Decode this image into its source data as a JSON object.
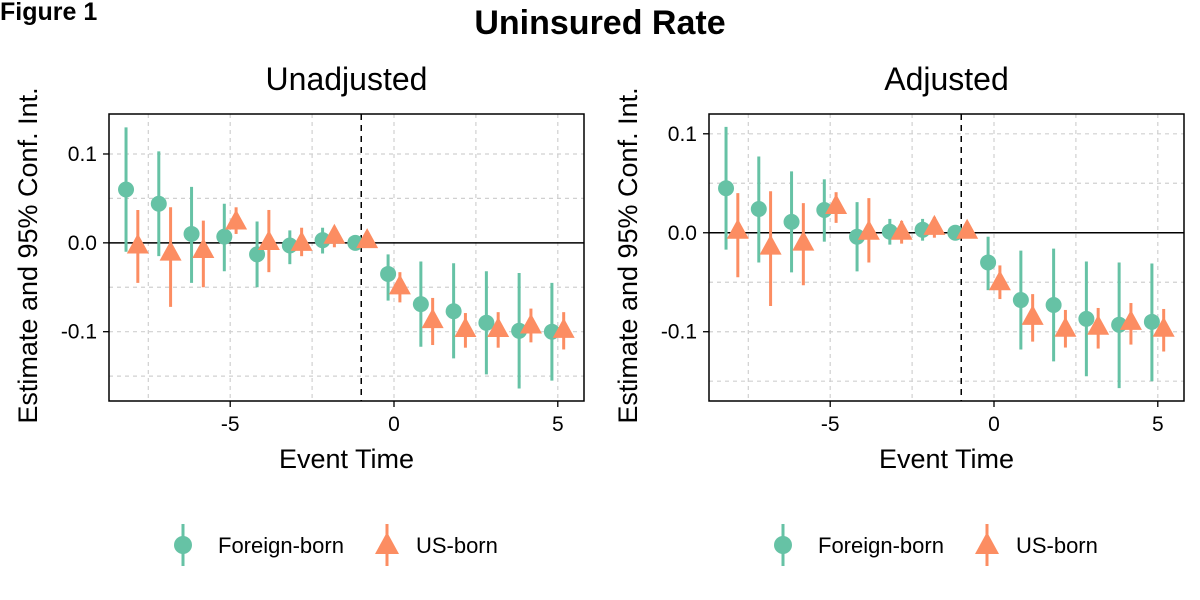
{
  "figure_label": "Figure 1",
  "title": "Uninsured Rate",
  "colors": {
    "foreign": "#66c2a5",
    "us": "#fc8d62",
    "grid": "#d0d0d0"
  },
  "legend": {
    "items": [
      {
        "label": "Foreign-born",
        "shape": "circle",
        "color": "#66c2a5"
      },
      {
        "label": "US-born",
        "shape": "triangle",
        "color": "#fc8d62"
      }
    ]
  },
  "chart_data": [
    {
      "type": "scatter",
      "title": "Unadjusted",
      "xlabel": "Event Time",
      "ylabel": "Estimate and 95% Conf. Int.",
      "xlim": [
        -8.7,
        5.8
      ],
      "ylim": [
        -0.178,
        0.145
      ],
      "x_ticks": [
        -5,
        0,
        5
      ],
      "x_tick_labels": [
        "-5",
        "0",
        "5"
      ],
      "y_ticks": [
        0.1,
        0.0,
        -0.1
      ],
      "y_tick_labels": [
        "0.1",
        "0.0",
        "-0.1"
      ],
      "reference_line_y": 0,
      "event_line_x": -1,
      "series": [
        {
          "name": "Foreign-born",
          "x": [
            -8,
            -7,
            -6,
            -5,
            -4,
            -3,
            -2,
            -1,
            0,
            1,
            2,
            3,
            4,
            5
          ],
          "y": [
            0.06,
            0.044,
            0.01,
            0.007,
            -0.013,
            -0.003,
            0.003,
            0.0,
            -0.035,
            -0.069,
            -0.077,
            -0.09,
            -0.099,
            -0.1
          ],
          "lower": [
            -0.01,
            -0.015,
            -0.045,
            -0.032,
            -0.05,
            -0.024,
            -0.012,
            -0.003,
            -0.065,
            -0.117,
            -0.13,
            -0.148,
            -0.164,
            -0.155
          ],
          "upper": [
            0.13,
            0.103,
            0.063,
            0.044,
            0.024,
            0.014,
            0.017,
            0.004,
            -0.013,
            -0.021,
            -0.023,
            -0.032,
            -0.034,
            -0.045
          ]
        },
        {
          "name": "US-born",
          "x": [
            -8,
            -7,
            -6,
            -5,
            -4,
            -3,
            -2,
            -1,
            0,
            1,
            2,
            3,
            4,
            5
          ],
          "y": [
            -0.003,
            -0.011,
            -0.008,
            0.024,
            0.001,
            0.0,
            0.008,
            0.003,
            -0.049,
            -0.087,
            -0.097,
            -0.097,
            -0.093,
            -0.098
          ],
          "lower": [
            -0.045,
            -0.072,
            -0.05,
            0.01,
            -0.033,
            -0.015,
            -0.005,
            -0.004,
            -0.067,
            -0.115,
            -0.118,
            -0.118,
            -0.112,
            -0.12
          ],
          "upper": [
            0.037,
            0.04,
            0.025,
            0.04,
            0.037,
            0.017,
            0.018,
            0.01,
            -0.033,
            -0.062,
            -0.079,
            -0.078,
            -0.074,
            -0.078
          ]
        }
      ]
    },
    {
      "type": "scatter",
      "title": "Adjusted",
      "xlabel": "Event Time",
      "ylabel": "Estimate and 95% Conf. Int.",
      "xlim": [
        -8.7,
        5.8
      ],
      "ylim": [
        -0.17,
        0.12
      ],
      "x_ticks": [
        -5,
        0,
        5
      ],
      "x_tick_labels": [
        "-5",
        "0",
        "5"
      ],
      "y_ticks": [
        0.1,
        0.0,
        -0.1
      ],
      "y_tick_labels": [
        "0.1",
        "0.0",
        "-0.1"
      ],
      "reference_line_y": 0,
      "event_line_x": -1,
      "series": [
        {
          "name": "Foreign-born",
          "x": [
            -8,
            -7,
            -6,
            -5,
            -4,
            -3,
            -2,
            -1,
            0,
            1,
            2,
            3,
            4,
            5
          ],
          "y": [
            0.045,
            0.024,
            0.011,
            0.023,
            -0.004,
            0.001,
            0.003,
            0.0,
            -0.03,
            -0.068,
            -0.073,
            -0.087,
            -0.093,
            -0.09
          ],
          "lower": [
            -0.017,
            -0.03,
            -0.04,
            -0.009,
            -0.039,
            -0.012,
            -0.008,
            -0.003,
            -0.058,
            -0.118,
            -0.13,
            -0.145,
            -0.157,
            -0.15
          ],
          "upper": [
            0.107,
            0.077,
            0.062,
            0.054,
            0.031,
            0.014,
            0.014,
            0.003,
            -0.004,
            -0.018,
            -0.016,
            -0.029,
            -0.03,
            -0.031
          ]
        },
        {
          "name": "US-born",
          "x": [
            -8,
            -7,
            -6,
            -5,
            -4,
            -3,
            -2,
            -1,
            0,
            1,
            2,
            3,
            4,
            5
          ],
          "y": [
            0.002,
            -0.014,
            -0.01,
            0.027,
            0.001,
            0.001,
            0.006,
            0.002,
            -0.05,
            -0.085,
            -0.097,
            -0.095,
            -0.09,
            -0.097
          ],
          "lower": [
            -0.045,
            -0.074,
            -0.053,
            0.01,
            -0.03,
            -0.011,
            -0.005,
            -0.004,
            -0.067,
            -0.11,
            -0.116,
            -0.117,
            -0.113,
            -0.12
          ],
          "upper": [
            0.04,
            0.042,
            0.03,
            0.041,
            0.035,
            0.012,
            0.016,
            0.009,
            -0.033,
            -0.062,
            -0.078,
            -0.076,
            -0.071,
            -0.077
          ]
        }
      ]
    }
  ]
}
